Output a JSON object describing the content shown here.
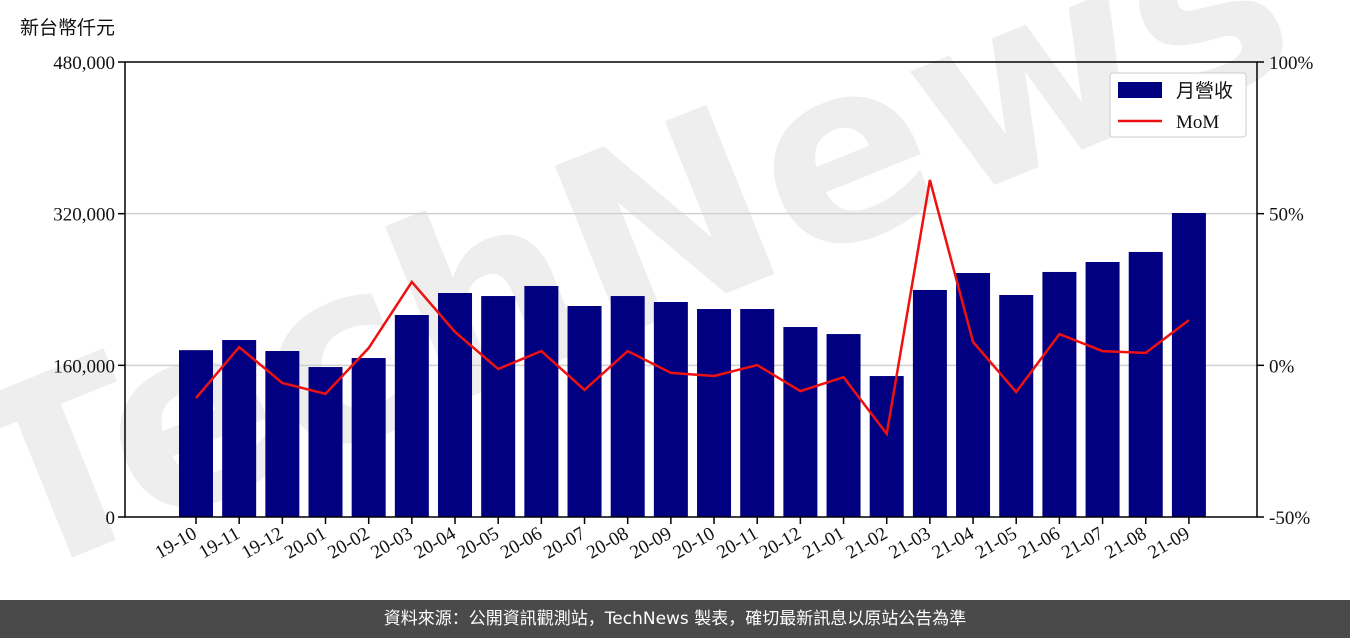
{
  "chart_data": {
    "type": "bar_line",
    "y_label": "新台幣仟元",
    "watermark": "TechNews",
    "footer": "資料來源：公開資訊觀測站，TechNews 製表，確切最新訊息以原站公告為準",
    "categories": [
      "19-10",
      "19-11",
      "19-12",
      "20-01",
      "20-02",
      "20-03",
      "20-04",
      "20-05",
      "20-06",
      "20-07",
      "20-08",
      "20-09",
      "20-10",
      "20-11",
      "20-12",
      "21-01",
      "21-02",
      "21-03",
      "21-04",
      "21-05",
      "21-06",
      "21-07",
      "21-08",
      "21-09"
    ],
    "series": [
      {
        "name": "月營收",
        "color": "#000080",
        "type": "bar",
        "values": [
          176000,
          186700,
          175100,
          158200,
          167700,
          213100,
          236300,
          233100,
          243700,
          222600,
          233100,
          226800,
          219400,
          219400,
          200400,
          193000,
          148700,
          239500,
          257400,
          234200,
          258500,
          269000,
          279600,
          320700
        ]
      },
      {
        "name": "MoM",
        "color": "#ee1111",
        "type": "line",
        "axis": "y2",
        "values": [
          -10.8,
          6.0,
          -5.8,
          -9.4,
          5.7,
          27.5,
          11.0,
          -1.2,
          4.7,
          -8.1,
          4.7,
          -2.5,
          -3.5,
          0.1,
          -8.5,
          -3.9,
          -22.6,
          61.1,
          7.7,
          -8.8,
          10.3,
          4.7,
          4.1,
          14.9
        ]
      }
    ],
    "ylim": [
      0,
      480000
    ],
    "yticks": [
      {
        "value": 0,
        "label": "0"
      },
      {
        "value": 160000,
        "label": "160,000"
      },
      {
        "value": 320000,
        "label": "320,000"
      },
      {
        "value": 480000,
        "label": "480,000"
      }
    ],
    "y2lim": [
      -50,
      100
    ],
    "y2ticks": [
      {
        "value": -50,
        "label": "-50%"
      },
      {
        "value": 0,
        "label": "0%"
      },
      {
        "value": 50,
        "label": "50%"
      },
      {
        "value": 100,
        "label": "100%"
      }
    ],
    "grid": true,
    "legend": "upper right"
  }
}
